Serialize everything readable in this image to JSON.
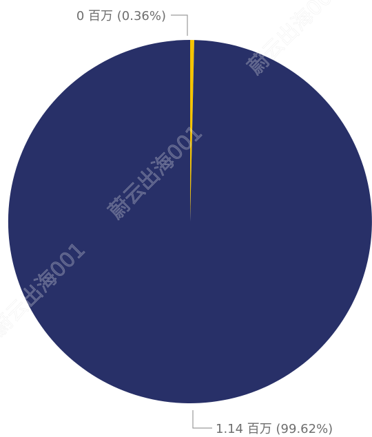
{
  "chart_data": {
    "type": "pie",
    "slices": [
      {
        "label": "0 百万 (0.36%)",
        "value": 0,
        "percent": 0.36,
        "color": "#f5c400"
      },
      {
        "label": "1.14 百万 (99.62%)",
        "value": 1.14,
        "percent": 99.62,
        "color": "#283068"
      }
    ],
    "unit": "百万",
    "legend": "none"
  },
  "watermark": {
    "text": "蔚云出海001"
  }
}
